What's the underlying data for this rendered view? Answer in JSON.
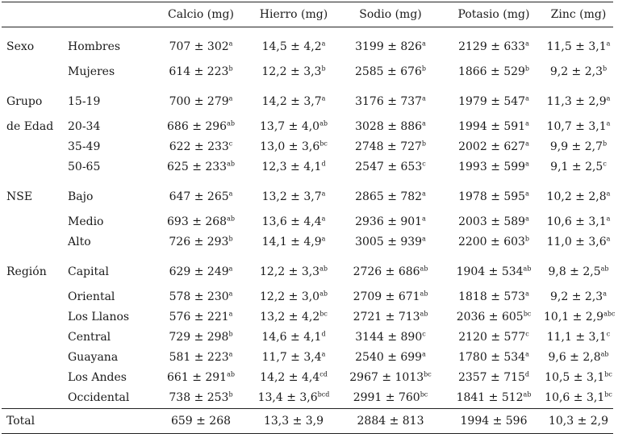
{
  "headers": [
    "",
    "",
    "Calcio (mg)",
    "Hierro (mg)",
    "Sodio (mg)",
    "Potasio (mg)",
    "Zinc (mg)"
  ],
  "groups": [
    {
      "label": "Sexo",
      "label2": "",
      "rows": [
        {
          "sub": "Hombres",
          "cells": [
            [
              "707 ± 302",
              "a"
            ],
            [
              "14,5 ± 4,2",
              "a"
            ],
            [
              "3199 ± 826",
              "a"
            ],
            [
              "2129 ± 633",
              "a"
            ],
            [
              "11,5 ± 3,1",
              "a"
            ]
          ]
        },
        {
          "sub": "Mujeres",
          "cells": [
            [
              "614 ± 223",
              "b"
            ],
            [
              "12,2 ± 3,3",
              "b"
            ],
            [
              "2585 ± 676",
              "b"
            ],
            [
              "1866 ± 529",
              "b"
            ],
            [
              "9,2 ± 2,3",
              "b"
            ]
          ]
        }
      ]
    },
    {
      "label": "Grupo",
      "label2": "de Edad",
      "rows": [
        {
          "sub": "15-19",
          "cells": [
            [
              "700 ± 279",
              "a"
            ],
            [
              "14,2 ± 3,7",
              "a"
            ],
            [
              "3176 ± 737",
              "a"
            ],
            [
              "1979 ± 547",
              "a"
            ],
            [
              "11,3 ± 2,9",
              "a"
            ]
          ]
        },
        {
          "sub": "20-34",
          "cells": [
            [
              "686 ± 296",
              "ab"
            ],
            [
              "13,7 ± 4,0",
              "ab"
            ],
            [
              "3028 ± 886",
              "a"
            ],
            [
              "1994 ± 591",
              "a"
            ],
            [
              "10,7 ± 3,1",
              "a"
            ]
          ]
        },
        {
          "sub": "35-49",
          "cells": [
            [
              "622 ± 233",
              "c"
            ],
            [
              "13,0 ± 3,6",
              "bc"
            ],
            [
              "2748 ± 727",
              "b"
            ],
            [
              "2002 ± 627",
              "a"
            ],
            [
              "9,9 ± 2,7",
              "b"
            ]
          ]
        },
        {
          "sub": "50-65",
          "cells": [
            [
              "625 ± 233",
              "ab"
            ],
            [
              "12,3 ± 4,1",
              "d"
            ],
            [
              "2547 ± 653",
              "c"
            ],
            [
              "1993 ± 599",
              "a"
            ],
            [
              "9,1 ± 2,5",
              "c"
            ]
          ]
        }
      ]
    },
    {
      "label": "NSE",
      "label2": "",
      "rows": [
        {
          "sub": "Bajo",
          "cells": [
            [
              "647 ± 265",
              "a"
            ],
            [
              "13,2 ± 3,7",
              "a"
            ],
            [
              "2865 ± 782",
              "a"
            ],
            [
              "1978 ± 595",
              "a"
            ],
            [
              "10,2 ± 2,8",
              "a"
            ]
          ]
        },
        {
          "sub": "Medio",
          "cells": [
            [
              "693 ± 268",
              "ab"
            ],
            [
              "13,6 ± 4,4",
              "a"
            ],
            [
              "2936 ± 901",
              "a"
            ],
            [
              "2003 ± 589",
              "a"
            ],
            [
              "10,6 ± 3,1",
              "a"
            ]
          ]
        },
        {
          "sub": "Alto",
          "cells": [
            [
              "726 ± 293",
              "b"
            ],
            [
              "14,1 ± 4,9",
              "a"
            ],
            [
              "3005 ± 939",
              "a"
            ],
            [
              "2200 ± 603",
              "b"
            ],
            [
              "11,0 ± 3,6",
              "a"
            ]
          ]
        }
      ]
    },
    {
      "label": "Región",
      "label2": "",
      "rows": [
        {
          "sub": "Capital",
          "cells": [
            [
              "629 ± 249",
              "a"
            ],
            [
              "12,2 ± 3,3",
              "ab"
            ],
            [
              "2726 ± 686",
              "ab"
            ],
            [
              "1904 ± 534",
              "ab"
            ],
            [
              "9,8 ± 2,5",
              "ab"
            ]
          ]
        },
        {
          "sub": "Oriental",
          "cells": [
            [
              "578 ± 230",
              "a"
            ],
            [
              "12,2 ± 3,0",
              "ab"
            ],
            [
              "2709 ± 671",
              "ab"
            ],
            [
              "1818 ± 573",
              "a"
            ],
            [
              "9,2 ± 2,3",
              "a"
            ]
          ]
        },
        {
          "sub": "Los Llanos",
          "cells": [
            [
              "576 ± 221",
              "a"
            ],
            [
              "13,2 ± 4,2",
              "bc"
            ],
            [
              "2721 ± 713",
              "ab"
            ],
            [
              "2036 ± 605",
              "bc"
            ],
            [
              "10,1 ± 2,9",
              "abc"
            ]
          ]
        },
        {
          "sub": "Central",
          "cells": [
            [
              "729 ± 298",
              "b"
            ],
            [
              "14,6 ± 4,1",
              "d"
            ],
            [
              "3144 ± 890",
              "c"
            ],
            [
              "2120 ± 577",
              "c"
            ],
            [
              "11,1 ± 3,1",
              "c"
            ]
          ]
        },
        {
          "sub": "Guayana",
          "cells": [
            [
              "581 ± 223",
              "a"
            ],
            [
              "11,7 ± 3,4",
              "a"
            ],
            [
              "2540 ± 699",
              "a"
            ],
            [
              "1780 ± 534",
              "a"
            ],
            [
              "9,6 ± 2,8",
              "ab"
            ]
          ]
        },
        {
          "sub": "Los Andes",
          "cells": [
            [
              "661 ± 291",
              "ab"
            ],
            [
              "14,2 ± 4,4",
              "cd"
            ],
            [
              "2967 ± 1013",
              "bc"
            ],
            [
              "2357 ± 715",
              "d"
            ],
            [
              "10,5 ± 3,1",
              "bc"
            ]
          ]
        },
        {
          "sub": "Occidental",
          "cells": [
            [
              "738 ± 253",
              "b"
            ],
            [
              "13,4 ± 3,6",
              "bcd"
            ],
            [
              "2991 ± 760",
              "bc"
            ],
            [
              "1841 ± 512",
              "ab"
            ],
            [
              "10,6 ± 3,1",
              "bc"
            ]
          ]
        }
      ]
    }
  ],
  "total": {
    "label": "Total",
    "cells": [
      "659 ± 268",
      "13,3 ± 3,9",
      "2884 ± 813",
      "1994 ± 596",
      "10,3 ± 2,9"
    ]
  }
}
